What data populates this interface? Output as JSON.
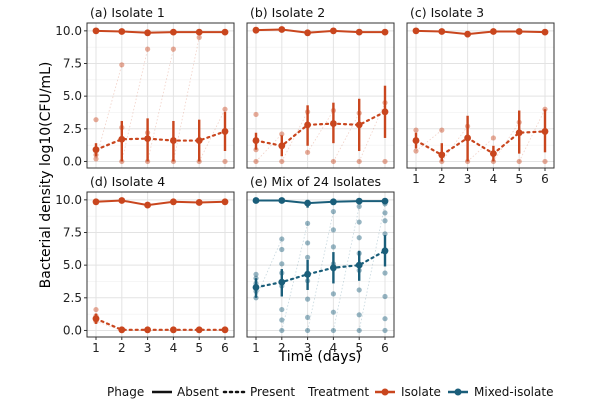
{
  "chart_data": {
    "type": "line",
    "ylabel": "Bacterial density log10(CFU/mL)",
    "xlabel": "Time (days)",
    "x": [
      1,
      2,
      3,
      4,
      5,
      6
    ],
    "x_ticks": [
      "1",
      "2",
      "3",
      "4",
      "5",
      "6"
    ],
    "y_ticks": [
      "0.0",
      "2.5",
      "5.0",
      "7.5",
      "10.0"
    ],
    "ylim": [
      -0.5,
      10.6
    ],
    "grid": true,
    "colors": {
      "Isolate": "#c9461e",
      "Mixed-isolate": "#1a5e7a"
    },
    "panels": [
      {
        "title": "(a) Isolate 1",
        "treatment": "Isolate",
        "absent": {
          "mean": [
            10.0,
            9.95,
            9.85,
            9.9,
            9.9,
            9.9
          ],
          "lo": [
            9.8,
            9.8,
            9.7,
            9.75,
            9.75,
            9.75
          ],
          "hi": [
            10.15,
            10.1,
            10.0,
            10.05,
            10.05,
            10.05
          ]
        },
        "present": {
          "mean": [
            0.9,
            1.7,
            1.75,
            1.6,
            1.6,
            2.3
          ],
          "lo": [
            0.4,
            0.0,
            0.0,
            0.0,
            0.0,
            0.8
          ],
          "hi": [
            1.4,
            3.1,
            3.3,
            3.1,
            3.2,
            3.8
          ]
        },
        "scatter": [
          [
            1,
            3.2
          ],
          [
            1,
            0.5
          ],
          [
            1,
            0.2
          ],
          [
            2,
            7.4
          ],
          [
            2,
            2.6
          ],
          [
            2,
            0.0
          ],
          [
            3,
            8.6
          ],
          [
            3,
            2.2
          ],
          [
            3,
            0.0
          ],
          [
            4,
            8.6
          ],
          [
            4,
            0.0
          ],
          [
            5,
            9.5
          ],
          [
            5,
            0.0
          ],
          [
            6,
            4.0
          ],
          [
            6,
            0.0
          ]
        ]
      },
      {
        "title": "(b) Isolate 2",
        "treatment": "Isolate",
        "absent": {
          "mean": [
            10.05,
            10.1,
            9.85,
            10.0,
            9.9,
            9.9
          ],
          "lo": [
            9.9,
            9.95,
            9.7,
            9.85,
            9.8,
            9.8
          ],
          "hi": [
            10.2,
            10.25,
            10.0,
            10.15,
            10.05,
            10.05
          ]
        },
        "present": {
          "mean": [
            1.6,
            1.2,
            2.8,
            2.9,
            2.8,
            3.8
          ],
          "lo": [
            0.9,
            0.4,
            1.2,
            1.4,
            0.8,
            1.8
          ],
          "hi": [
            2.2,
            2.0,
            4.3,
            4.5,
            4.8,
            5.8
          ]
        },
        "scatter": [
          [
            1,
            3.6
          ],
          [
            1,
            0.9
          ],
          [
            1,
            0.0
          ],
          [
            2,
            2.1
          ],
          [
            2,
            0.0
          ],
          [
            3,
            3.8
          ],
          [
            3,
            0.7
          ],
          [
            4,
            3.9
          ],
          [
            4,
            0.0
          ],
          [
            5,
            3.7
          ],
          [
            5,
            0.0
          ],
          [
            6,
            4.5
          ],
          [
            6,
            0.0
          ]
        ]
      },
      {
        "title": "(c) Isolate 3",
        "treatment": "Isolate",
        "absent": {
          "mean": [
            10.0,
            9.95,
            9.75,
            9.95,
            9.95,
            9.9
          ],
          "lo": [
            9.85,
            9.8,
            9.5,
            9.8,
            9.8,
            9.75
          ],
          "hi": [
            10.15,
            10.1,
            9.95,
            10.1,
            10.1,
            10.05
          ]
        },
        "present": {
          "mean": [
            1.6,
            0.5,
            1.8,
            0.6,
            2.2,
            2.3
          ],
          "lo": [
            1.0,
            0.0,
            0.0,
            0.0,
            0.6,
            0.7
          ],
          "hi": [
            2.2,
            1.4,
            3.5,
            1.2,
            3.9,
            4.0
          ]
        },
        "scatter": [
          [
            1,
            2.4
          ],
          [
            1,
            0.8
          ],
          [
            2,
            2.4
          ],
          [
            2,
            0.0
          ],
          [
            3,
            2.7
          ],
          [
            3,
            0.0
          ],
          [
            4,
            1.8
          ],
          [
            4,
            0.0
          ],
          [
            5,
            3.0
          ],
          [
            5,
            0.0
          ],
          [
            6,
            4.0
          ],
          [
            6,
            0.0
          ]
        ]
      },
      {
        "title": "(d) Isolate 4",
        "treatment": "Isolate",
        "absent": {
          "mean": [
            9.85,
            9.95,
            9.6,
            9.85,
            9.8,
            9.85
          ],
          "lo": [
            9.7,
            9.8,
            9.4,
            9.7,
            9.65,
            9.7
          ],
          "hi": [
            10.0,
            10.1,
            9.8,
            10.0,
            9.95,
            10.0
          ]
        },
        "present": {
          "mean": [
            0.9,
            0.05,
            0.05,
            0.05,
            0.05,
            0.05
          ],
          "lo": [
            0.5,
            0.0,
            0.0,
            0.0,
            0.0,
            0.0
          ],
          "hi": [
            1.3,
            0.1,
            0.1,
            0.1,
            0.1,
            0.1
          ]
        },
        "scatter": [
          [
            1,
            1.6
          ],
          [
            1,
            1.1
          ],
          [
            1,
            0.7
          ],
          [
            2,
            0.0
          ],
          [
            3,
            0.0
          ],
          [
            4,
            0.0
          ],
          [
            5,
            0.0
          ],
          [
            6,
            0.0
          ]
        ]
      },
      {
        "title": "(e) Mix of 24 Isolates",
        "treatment": "Mixed-isolate",
        "absent": {
          "mean": [
            9.95,
            9.95,
            9.75,
            9.85,
            9.9,
            9.9
          ],
          "lo": [
            9.75,
            9.75,
            9.4,
            9.6,
            9.65,
            9.65
          ],
          "hi": [
            10.1,
            10.1,
            10.0,
            10.05,
            10.1,
            10.1
          ]
        },
        "present": {
          "mean": [
            3.3,
            3.7,
            4.3,
            4.8,
            5.0,
            6.1
          ],
          "lo": [
            2.5,
            2.6,
            3.1,
            3.6,
            3.8,
            4.9
          ],
          "hi": [
            4.0,
            4.7,
            5.4,
            6.0,
            6.1,
            7.3
          ]
        },
        "scatter": [
          [
            1,
            4.3
          ],
          [
            1,
            4.0
          ],
          [
            1,
            3.6
          ],
          [
            1,
            3.0
          ],
          [
            1,
            2.5
          ],
          [
            2,
            7.0
          ],
          [
            2,
            6.2
          ],
          [
            2,
            5.1
          ],
          [
            2,
            4.4
          ],
          [
            2,
            3.4
          ],
          [
            2,
            1.6
          ],
          [
            2,
            0.8
          ],
          [
            2,
            0.0
          ],
          [
            3,
            8.2
          ],
          [
            3,
            6.7
          ],
          [
            3,
            5.6
          ],
          [
            3,
            4.4
          ],
          [
            3,
            3.8
          ],
          [
            3,
            2.4
          ],
          [
            3,
            1.0
          ],
          [
            3,
            0.0
          ],
          [
            4,
            9.1
          ],
          [
            4,
            7.7
          ],
          [
            4,
            6.4
          ],
          [
            4,
            5.1
          ],
          [
            4,
            4.7
          ],
          [
            4,
            2.8
          ],
          [
            4,
            1.4
          ],
          [
            4,
            0.0
          ],
          [
            5,
            9.5
          ],
          [
            5,
            8.3
          ],
          [
            5,
            7.1
          ],
          [
            5,
            5.9
          ],
          [
            5,
            4.6
          ],
          [
            5,
            3.1
          ],
          [
            5,
            1.2
          ],
          [
            5,
            0.0
          ],
          [
            6,
            9.7
          ],
          [
            6,
            9.0
          ],
          [
            6,
            8.4
          ],
          [
            6,
            7.4
          ],
          [
            6,
            6.0
          ],
          [
            6,
            4.4
          ],
          [
            6,
            2.6
          ],
          [
            6,
            0.9
          ],
          [
            6,
            0.0
          ]
        ]
      }
    ],
    "legend": {
      "phage_title": "Phage",
      "phage_items": [
        "Absent",
        "Present"
      ],
      "treatment_title": "Treatment",
      "treatment_items": [
        "Isolate",
        "Mixed-isolate"
      ]
    }
  }
}
